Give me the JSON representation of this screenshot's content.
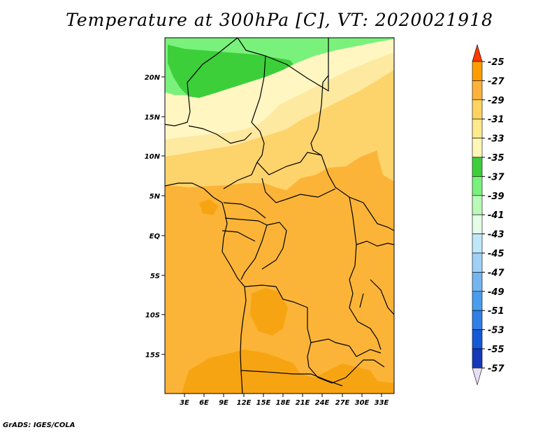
{
  "title": "Temperature at 300hPa [C], VT: 2020021918",
  "credit": "GrADS: IGES/COLA",
  "map": {
    "region": "Central Africa",
    "lat_labels": [
      "20N",
      "15N",
      "10N",
      "5N",
      "EQ",
      "5S",
      "10S",
      "15S"
    ],
    "lon_labels": [
      "3E",
      "6E",
      "9E",
      "12E",
      "15E",
      "18E",
      "21E",
      "24E",
      "27E",
      "30E",
      "33E"
    ]
  },
  "colorbar": {
    "labels": [
      "-25",
      "-27",
      "-29",
      "-31",
      "-33",
      "-35",
      "-37",
      "-39",
      "-41",
      "-43",
      "-45",
      "-47",
      "-49",
      "-51",
      "-53",
      "-55",
      "-57"
    ],
    "colors": [
      "#ff6a00",
      "#ff9d00",
      "#ffb13a",
      "#ffd35f",
      "#fee98d",
      "#fff7b6",
      "#3ccf3a",
      "#79f17b",
      "#b8fab6",
      "#e3fde7",
      "#bfe6f9",
      "#9fd1f6",
      "#73b5ef",
      "#4a9cec",
      "#2f7fe6",
      "#1659d8",
      "#1539b8",
      "#0d1c7a"
    ],
    "top_color": "#ff3a00",
    "bottom_color": "#e6e0f6"
  },
  "shading": {
    "darkest_orange": "#f7a412",
    "orange": "#fbb437",
    "light_orange": "#fdd36c",
    "pale_yellow": "#fde9a0",
    "very_pale_yellow": "#fff6c2",
    "dark_green": "#3ccf3a",
    "light_green": "#79f17b"
  }
}
